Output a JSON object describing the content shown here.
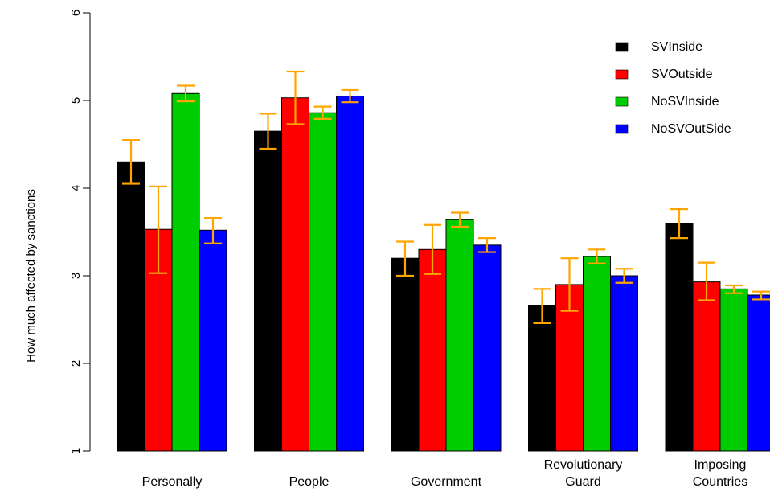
{
  "chart_data": {
    "type": "bar",
    "title": "",
    "xlabel": "",
    "ylabel": "How much affected by sanctions",
    "ylim": [
      1,
      6
    ],
    "yticks": [
      1,
      2,
      3,
      4,
      5,
      6
    ],
    "grid": false,
    "legend_position": "top-right",
    "categories": [
      [
        "Personally"
      ],
      [
        "People"
      ],
      [
        "Government"
      ],
      [
        "Revolutionary",
        "Guard"
      ],
      [
        "Imposing",
        "Countries"
      ]
    ],
    "series": [
      {
        "name": "SVInside",
        "color": "#000000",
        "values": [
          4.3,
          4.65,
          3.2,
          2.66,
          3.6
        ],
        "err_low": [
          4.05,
          4.45,
          3.0,
          2.46,
          3.43
        ],
        "err_high": [
          4.55,
          4.85,
          3.39,
          2.85,
          3.76
        ]
      },
      {
        "name": "SVOutside",
        "color": "#ff0000",
        "values": [
          3.53,
          5.03,
          3.3,
          2.9,
          2.93
        ],
        "err_low": [
          3.03,
          4.73,
          3.02,
          2.6,
          2.72
        ],
        "err_high": [
          4.02,
          5.33,
          3.58,
          3.2,
          3.15
        ]
      },
      {
        "name": "NoSVInside",
        "color": "#00cd00",
        "values": [
          5.08,
          4.86,
          3.64,
          3.22,
          2.85
        ],
        "err_low": [
          4.99,
          4.79,
          3.56,
          3.14,
          2.8
        ],
        "err_high": [
          5.17,
          4.93,
          3.72,
          3.3,
          2.89
        ]
      },
      {
        "name": "NoSVOutSide",
        "color": "#0000ff",
        "values": [
          3.52,
          5.05,
          3.35,
          3.0,
          2.78
        ],
        "err_low": [
          3.37,
          4.98,
          3.27,
          2.92,
          2.73
        ],
        "err_high": [
          3.66,
          5.12,
          3.43,
          3.08,
          2.82
        ]
      }
    ],
    "error_bar_color": "#ffa500"
  }
}
